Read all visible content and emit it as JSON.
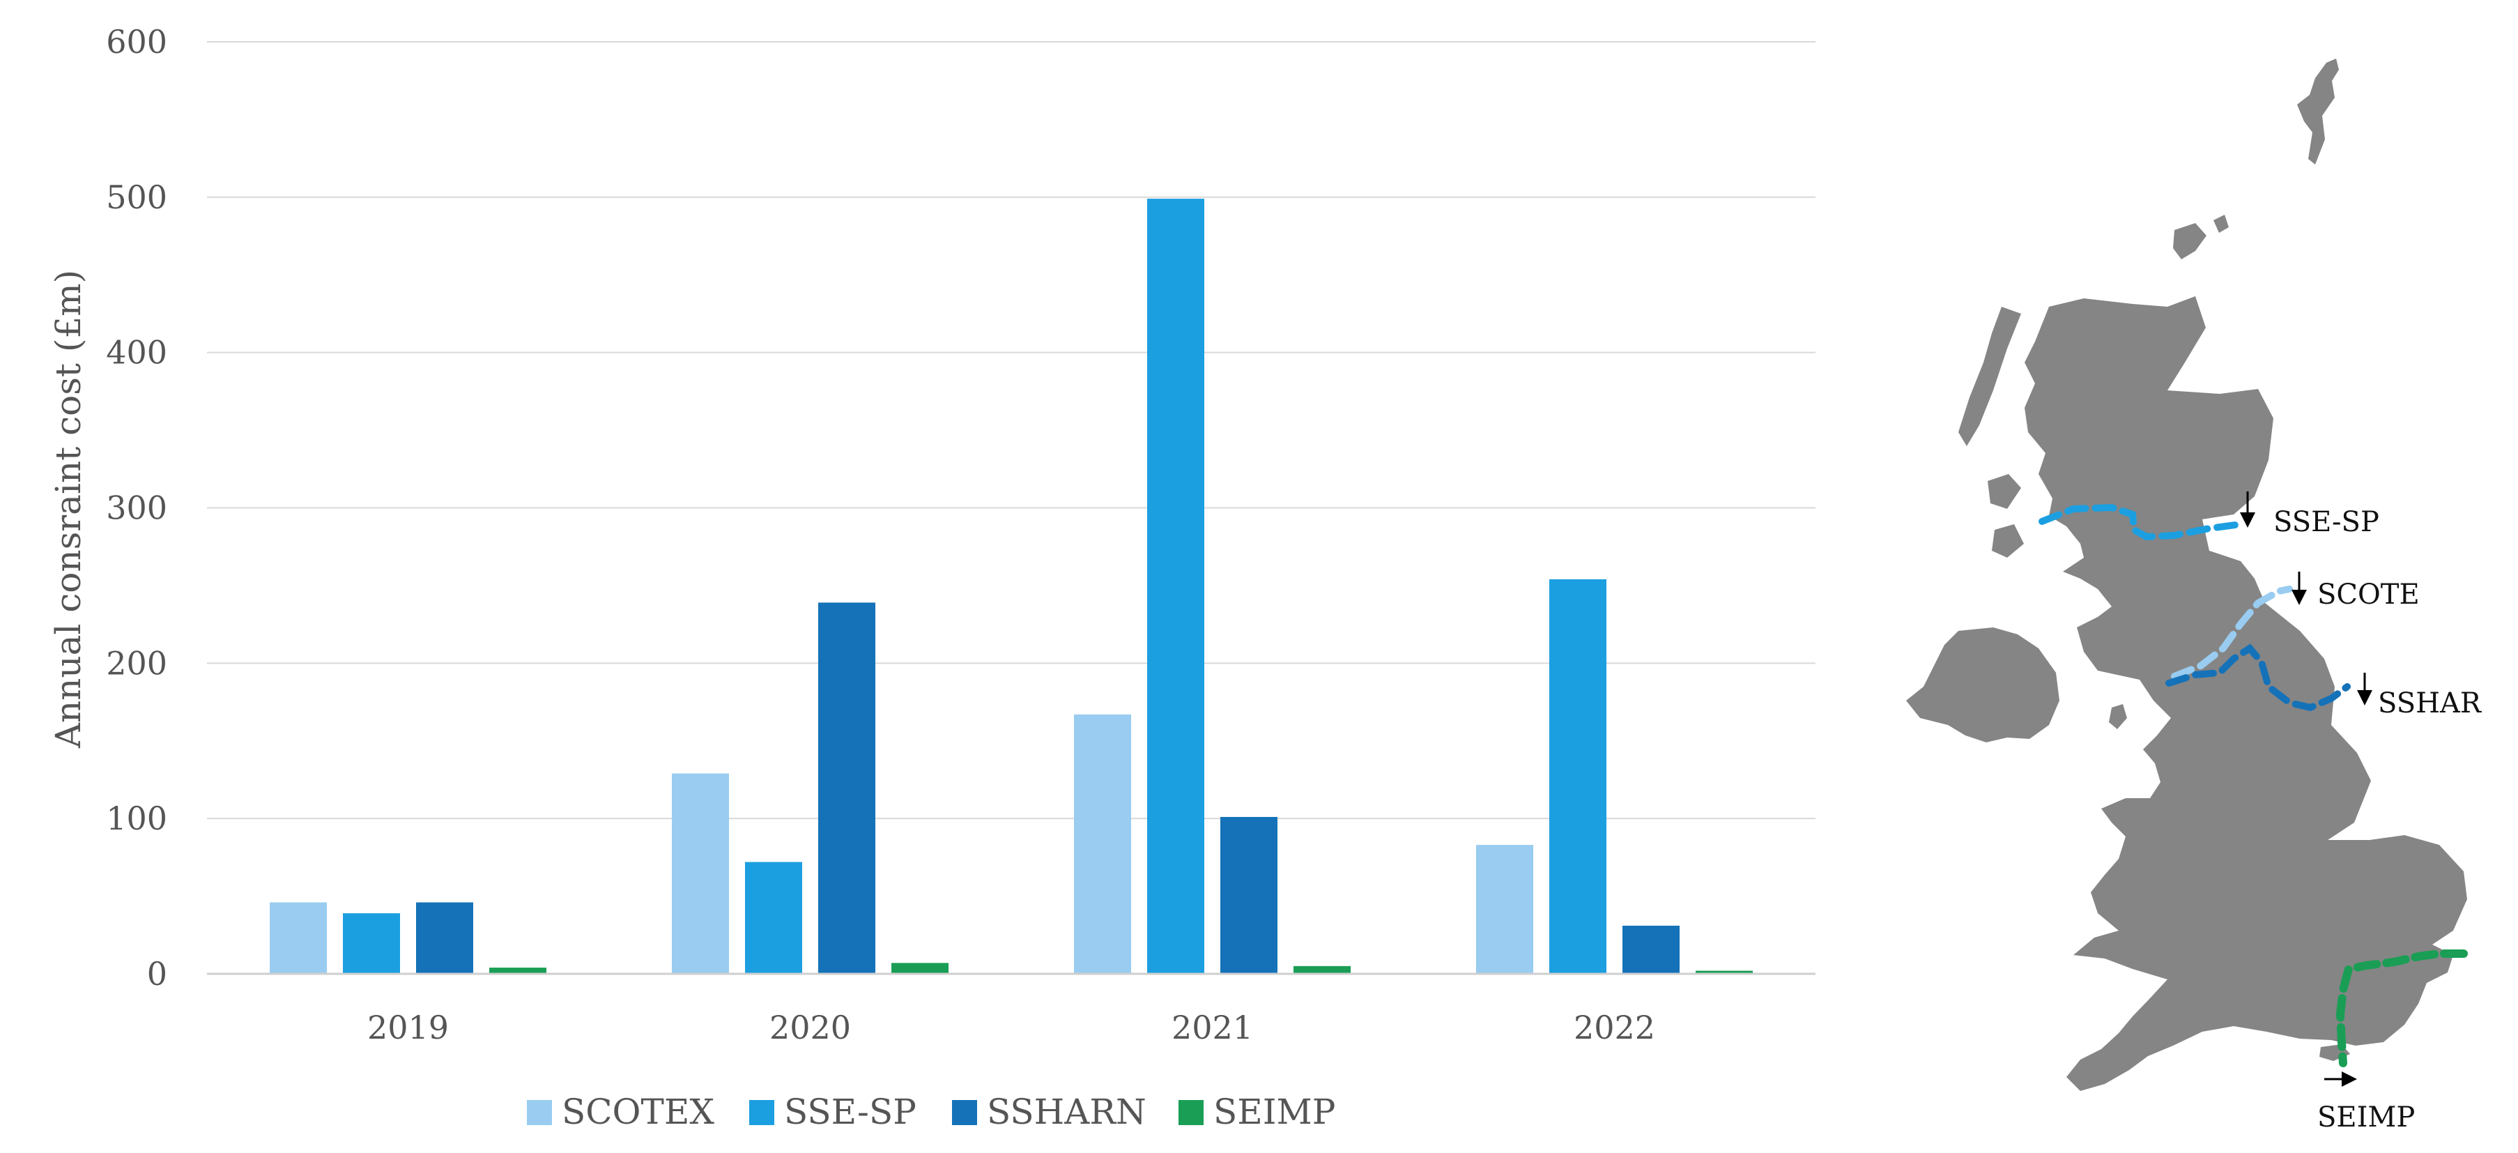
{
  "chart_data": {
    "type": "bar",
    "title": "",
    "xlabel": "",
    "ylabel": "Annual consraint cost (£m)",
    "ylim": [
      0,
      600
    ],
    "yticks": [
      0,
      100,
      200,
      300,
      400,
      500,
      600
    ],
    "grid": true,
    "legend": "bottom",
    "categories": [
      "2019",
      "2020",
      "2021",
      "2022"
    ],
    "series": [
      {
        "name": "SCOTEX",
        "color": "#99ccf0",
        "values": [
          46,
          129,
          167,
          83
        ]
      },
      {
        "name": "SSE-SP",
        "color": "#1c9fe0",
        "values": [
          39,
          72,
          499,
          254
        ]
      },
      {
        "name": "SSHARN",
        "color": "#1572b8",
        "values": [
          46,
          239,
          101,
          31
        ]
      },
      {
        "name": "SEIMP",
        "color": "#1a9e55",
        "values": [
          4,
          7,
          5,
          2
        ]
      }
    ]
  },
  "map": {
    "land_color": "#858585",
    "boundaries": [
      {
        "label": "SSE-SP",
        "color": "#1c9fe0",
        "arrow": "down"
      },
      {
        "label": "SCOTE",
        "color": "#99ccf0",
        "arrow": "down"
      },
      {
        "label": "SSHAR",
        "color": "#1572b8",
        "arrow": "down"
      },
      {
        "label": "SEIMP",
        "color": "#1a9e55",
        "arrow": "right"
      }
    ]
  }
}
